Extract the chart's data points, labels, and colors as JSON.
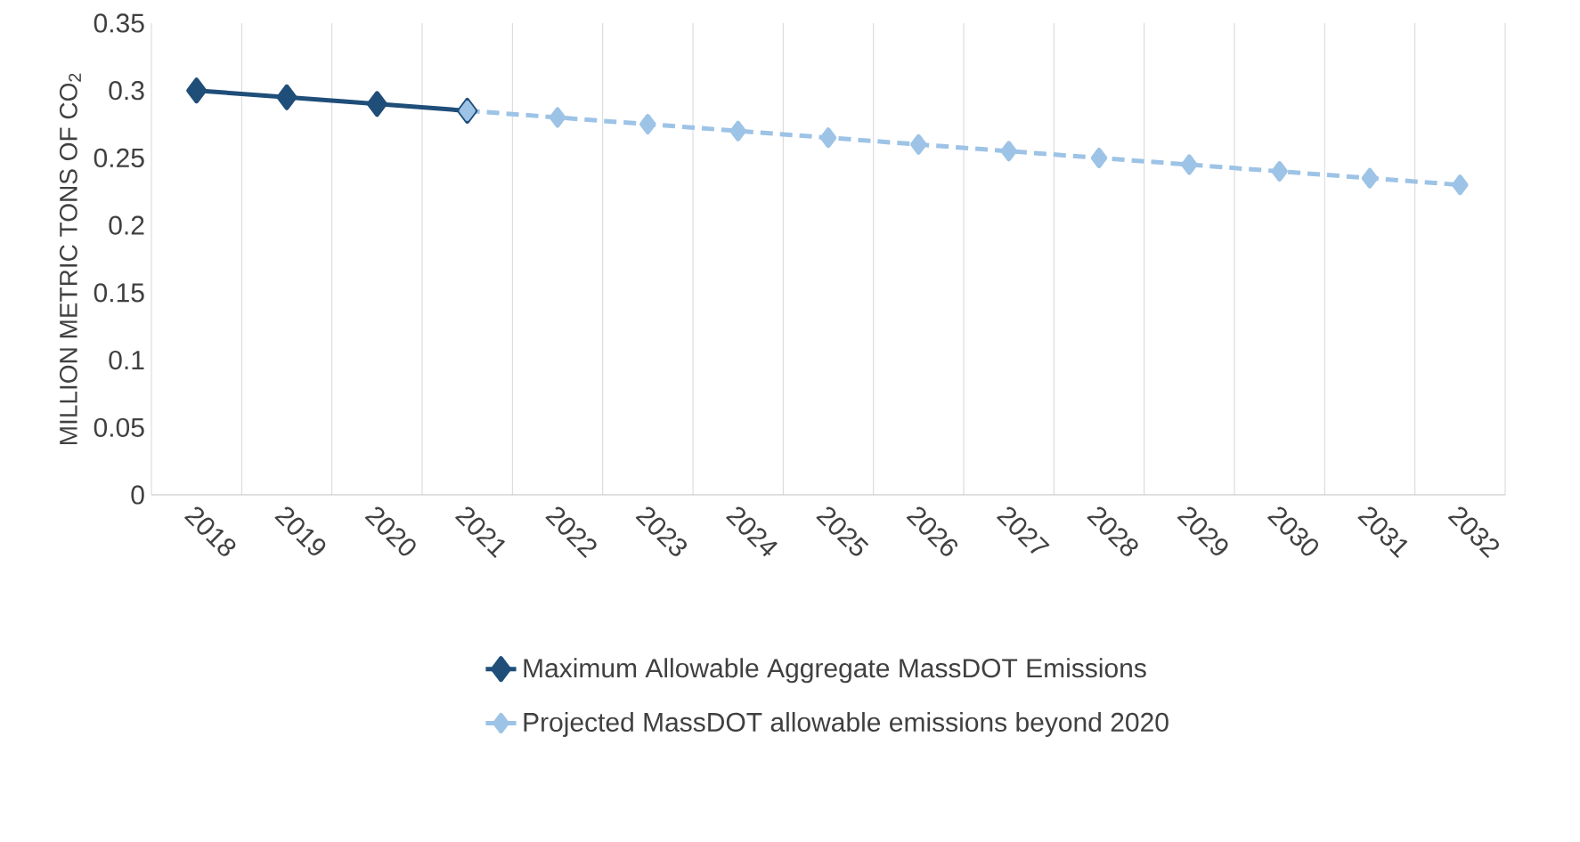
{
  "chart_data": {
    "type": "line",
    "ylabel": "MILLION METRIC TONS OF CO$_{2}$",
    "categories": [
      "2018",
      "2019",
      "2020",
      "2021",
      "2022",
      "2023",
      "2024",
      "2025",
      "2026",
      "2027",
      "2028",
      "2029",
      "2030",
      "2031",
      "2032"
    ],
    "series": [
      {
        "name": "Maximum Allowable Aggregate MassDOT Emissions",
        "color": "#1f4e79",
        "line_style": "solid",
        "values": [
          0.3,
          0.295,
          0.29,
          0.285,
          null,
          null,
          null,
          null,
          null,
          null,
          null,
          null,
          null,
          null,
          null
        ]
      },
      {
        "name": "Projected MassDOT allowable emissions beyond 2020",
        "color": "#9dc3e6",
        "line_style": "dashed",
        "values": [
          null,
          null,
          null,
          0.285,
          0.28,
          0.275,
          0.27,
          0.265,
          0.26,
          0.255,
          0.25,
          0.245,
          0.24,
          0.235,
          0.23
        ]
      }
    ],
    "ylim": [
      0,
      0.35
    ],
    "yticks": [
      0,
      0.05,
      0.1,
      0.15,
      0.2,
      0.25,
      0.3,
      0.35
    ],
    "grid": "x",
    "legend": "bottom",
    "marker": "diamond"
  }
}
